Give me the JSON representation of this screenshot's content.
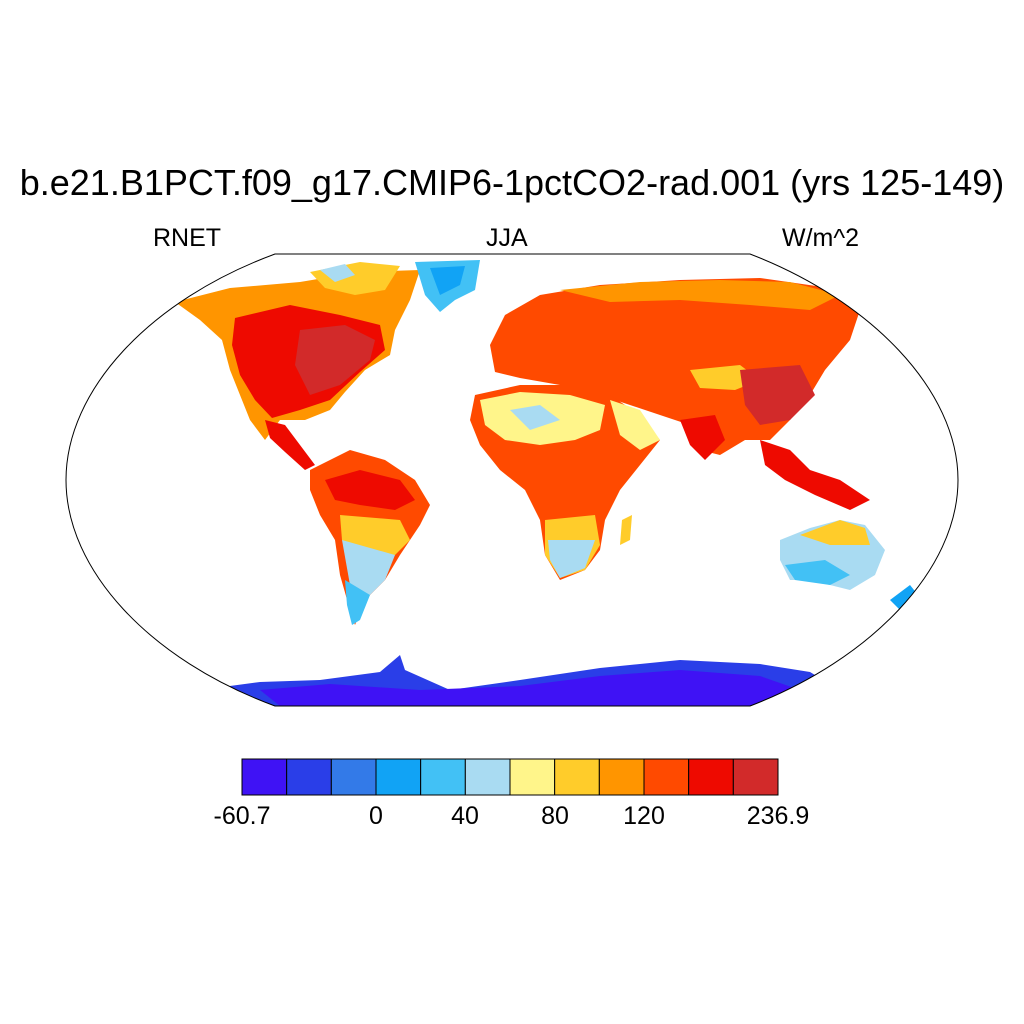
{
  "title": "b.e21.B1PCT.f09_g17.CMIP6-1pctCO2-rad.001 (yrs 125-149)",
  "left_label": "RNET",
  "center_label": "JJA",
  "right_label": "W/m^2",
  "colorbar": {
    "colors": [
      "#3f12f5",
      "#2a3ee8",
      "#337ae8",
      "#11a3f5",
      "#42c1f5",
      "#a9dbf2",
      "#fff58a",
      "#ffcc2a",
      "#ff9500",
      "#ff4a00",
      "#ee0a00",
      "#d22a2a"
    ],
    "tick_labels": [
      "-60.7",
      "0",
      "40",
      "80",
      "120",
      "236.9"
    ]
  }
}
